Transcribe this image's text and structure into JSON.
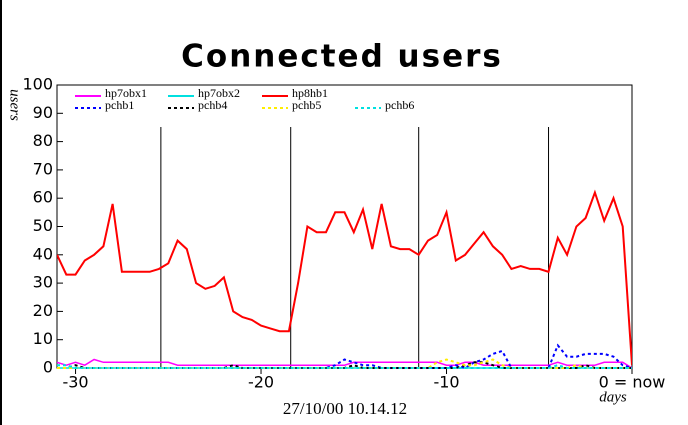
{
  "chart_data": {
    "type": "line",
    "title": "Connected users",
    "y_label": "users",
    "x_label": "days",
    "footnote": "27/10/00 10.14.12",
    "xlim": [
      -31,
      0
    ],
    "ylim": [
      0,
      100
    ],
    "xticks": [
      -30,
      -20,
      -10,
      {
        "value": 0,
        "label": "0 = now"
      }
    ],
    "yticks": [
      0,
      10,
      20,
      30,
      40,
      50,
      60,
      70,
      80,
      90,
      100
    ],
    "vlines": [
      -25.4,
      -18.4,
      -11.5,
      -4.5
    ],
    "x": [
      -31,
      -30.5,
      -30,
      -29.5,
      -29,
      -28.5,
      -28,
      -27.5,
      -27,
      -26.5,
      -26,
      -25.5,
      -25,
      -24.5,
      -24,
      -23.5,
      -23,
      -22.5,
      -22,
      -21.5,
      -21,
      -20.5,
      -20,
      -19.5,
      -19,
      -18.5,
      -18,
      -17.5,
      -17,
      -16.5,
      -16,
      -15.5,
      -15,
      -14.5,
      -14,
      -13.5,
      -13,
      -12.5,
      -12,
      -11.5,
      -11,
      -10.5,
      -10,
      -9.5,
      -9,
      -8.5,
      -8,
      -7.5,
      -7,
      -6.5,
      -6,
      -5.5,
      -5,
      -4.5,
      -4,
      -3.5,
      -3,
      -2.5,
      -2,
      -1.5,
      -1,
      -0.5,
      0
    ],
    "series": [
      {
        "name": "hp7obx1",
        "color": "#ff00ff",
        "dash": "solid",
        "values": [
          2,
          1,
          2,
          1,
          3,
          2,
          2,
          2,
          2,
          2,
          2,
          2,
          2,
          1,
          1,
          1,
          1,
          1,
          1,
          1,
          1,
          1,
          1,
          1,
          1,
          1,
          1,
          1,
          1,
          1,
          1,
          1,
          2,
          2,
          2,
          2,
          2,
          2,
          2,
          2,
          2,
          2,
          1,
          1,
          2,
          2,
          1,
          1,
          1,
          1,
          1,
          1,
          1,
          1,
          2,
          1,
          1,
          1,
          1,
          2,
          2,
          2,
          0
        ]
      },
      {
        "name": "hp7obx2",
        "color": "#00e0e0",
        "dash": "solid",
        "values": [
          0,
          0,
          0,
          0,
          0,
          0,
          0,
          0,
          0,
          0,
          0,
          0,
          0,
          0,
          0,
          0,
          0,
          0,
          0,
          0,
          0,
          0,
          0,
          0,
          0,
          0,
          0,
          0,
          0,
          0,
          0,
          0,
          0,
          0,
          0,
          0,
          0,
          0,
          0,
          0,
          0,
          0,
          0,
          0,
          0,
          0,
          0,
          0,
          0,
          0,
          0,
          0,
          0,
          0,
          0,
          0,
          0,
          0,
          0,
          0,
          0,
          0,
          0
        ]
      },
      {
        "name": "hp8hb1",
        "color": "#ff0000",
        "dash": "solid",
        "values": [
          40,
          33,
          33,
          38,
          40,
          43,
          58,
          34,
          34,
          34,
          34,
          35,
          37,
          45,
          42,
          30,
          28,
          29,
          32,
          20,
          18,
          17,
          15,
          14,
          13,
          13,
          30,
          50,
          48,
          48,
          55,
          55,
          48,
          56,
          42,
          58,
          43,
          42,
          42,
          40,
          45,
          47,
          55,
          38,
          40,
          44,
          48,
          43,
          40,
          35,
          36,
          35,
          35,
          34,
          46,
          40,
          50,
          53,
          62,
          52,
          60,
          50,
          1
        ]
      },
      {
        "name": "pchb1",
        "color": "#0000ff",
        "dash": "dotted",
        "values": [
          0,
          0,
          0,
          0,
          0,
          0,
          0,
          0,
          0,
          0,
          0,
          0,
          0,
          0,
          0,
          0,
          0,
          0,
          0,
          0,
          0,
          0,
          0,
          0,
          0,
          0,
          0,
          0,
          0,
          0,
          1,
          3,
          2,
          1,
          1,
          0,
          0,
          0,
          0,
          0,
          0,
          0,
          0,
          1,
          0,
          2,
          3,
          5,
          6,
          0,
          0,
          0,
          0,
          0,
          8,
          4,
          4,
          5,
          5,
          5,
          4,
          1,
          0
        ]
      },
      {
        "name": "pchb4",
        "color": "#000000",
        "dash": "dotted",
        "values": [
          0,
          0,
          1,
          0,
          0,
          0,
          0,
          0,
          0,
          0,
          0,
          0,
          0,
          0,
          0,
          0,
          0,
          0,
          0,
          1,
          0,
          0,
          0,
          0,
          0,
          0,
          0,
          0,
          0,
          0,
          0,
          0,
          1,
          0,
          0,
          0,
          0,
          0,
          0,
          0,
          0,
          0,
          0,
          0,
          1,
          2,
          2,
          1,
          0,
          0,
          0,
          0,
          0,
          0,
          0,
          0,
          0,
          1,
          0,
          0,
          0,
          0,
          0
        ]
      },
      {
        "name": "pchb5",
        "color": "#ffee00",
        "dash": "dotted",
        "values": [
          0,
          0,
          0,
          0,
          0,
          0,
          0,
          0,
          0,
          0,
          0,
          0,
          0,
          0,
          0,
          0,
          0,
          0,
          0,
          0,
          0,
          0,
          0,
          0,
          0,
          0,
          0,
          0,
          0,
          0,
          0,
          0,
          0,
          0,
          0,
          0,
          0,
          0,
          0,
          0,
          0,
          2,
          3,
          2,
          1,
          1,
          2,
          3,
          1,
          0,
          0,
          0,
          0,
          0,
          0,
          0,
          1,
          0,
          0,
          0,
          0,
          0,
          0
        ]
      },
      {
        "name": "pchb6",
        "color": "#00e0e0",
        "dash": "dotted",
        "values": [
          1,
          1,
          0,
          0,
          0,
          0,
          0,
          0,
          0,
          0,
          0,
          0,
          0,
          0,
          0,
          0,
          0,
          0,
          0,
          0,
          0,
          0,
          0,
          0,
          0,
          0,
          0,
          0,
          0,
          0,
          0,
          0,
          0,
          0,
          0,
          0,
          0,
          0,
          0,
          0,
          0,
          0,
          0,
          0,
          0,
          0,
          0,
          0,
          0,
          0,
          0,
          0,
          0,
          0,
          1,
          0,
          0,
          0,
          0,
          0,
          0,
          0,
          0
        ]
      }
    ]
  }
}
